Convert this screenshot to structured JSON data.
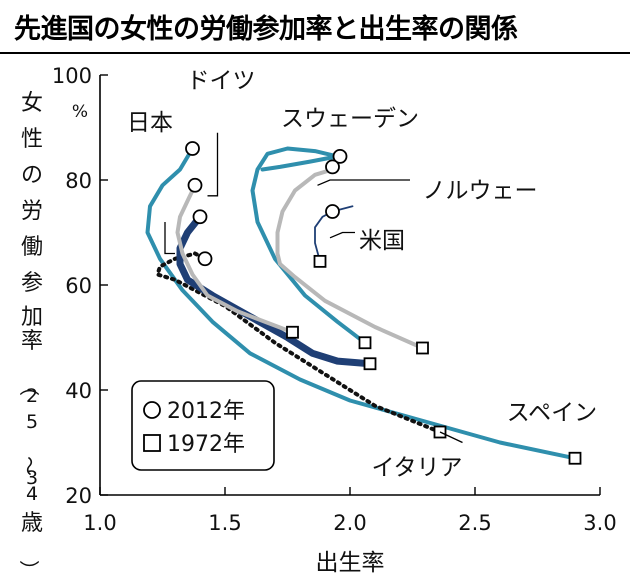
{
  "chart_data": {
    "type": "line",
    "title": "先進国の女性の労働参加率と出生率の関係",
    "xlabel": "出生率",
    "ylabel": "女性の労働参加率（25～34歳）",
    "yunit": "%",
    "xlim": [
      1.0,
      3.0
    ],
    "ylim": [
      20,
      100
    ],
    "xticks": [
      "1.0",
      "1.5",
      "2.0",
      "2.5",
      "3.0"
    ],
    "yticks": [
      "100",
      "80",
      "60",
      "40",
      "20"
    ],
    "legend": {
      "placement": "bottom-left",
      "entries": [
        {
          "symbol": "circle",
          "label": "2012年"
        },
        {
          "symbol": "square",
          "label": "1972年"
        }
      ]
    },
    "series": [
      {
        "name": "スペイン",
        "color": "#2f8fad",
        "style": "solid",
        "points": [
          [
            2.9,
            27
          ],
          [
            2.6,
            30
          ],
          [
            2.3,
            34
          ],
          [
            2.0,
            38
          ],
          [
            1.8,
            42
          ],
          [
            1.6,
            47
          ],
          [
            1.45,
            53
          ],
          [
            1.33,
            59
          ],
          [
            1.24,
            65
          ],
          [
            1.19,
            70
          ],
          [
            1.2,
            75
          ],
          [
            1.25,
            79
          ],
          [
            1.32,
            82
          ],
          [
            1.37,
            86
          ]
        ]
      },
      {
        "name": "イタリア",
        "color": "#111111",
        "style": "dotted",
        "points": [
          [
            2.36,
            32
          ],
          [
            2.1,
            37
          ],
          [
            1.9,
            43
          ],
          [
            1.7,
            49
          ],
          [
            1.5,
            56
          ],
          [
            1.4,
            58.5
          ],
          [
            1.3,
            61
          ],
          [
            1.23,
            62
          ],
          [
            1.24,
            63.5
          ],
          [
            1.3,
            65
          ],
          [
            1.38,
            66
          ],
          [
            1.42,
            65
          ]
        ]
      },
      {
        "name": "日本",
        "color": "#1f3f75",
        "style": "solid",
        "width": 7,
        "points": [
          [
            2.08,
            45
          ],
          [
            1.95,
            45.5
          ],
          [
            1.85,
            47
          ],
          [
            1.75,
            50
          ],
          [
            1.6,
            54
          ],
          [
            1.45,
            58
          ],
          [
            1.35,
            61
          ],
          [
            1.32,
            64
          ],
          [
            1.32,
            67
          ],
          [
            1.35,
            70
          ],
          [
            1.4,
            73
          ]
        ]
      },
      {
        "name": "ドイツ",
        "color": "#b8b8b8",
        "style": "solid",
        "points": [
          [
            1.77,
            51
          ],
          [
            1.55,
            55
          ],
          [
            1.43,
            58
          ],
          [
            1.37,
            62
          ],
          [
            1.33,
            66
          ],
          [
            1.31,
            70
          ],
          [
            1.32,
            73
          ],
          [
            1.35,
            76
          ],
          [
            1.38,
            79
          ]
        ]
      },
      {
        "name": "スウェーデン",
        "color": "#2f8fad",
        "style": "solid",
        "points": [
          [
            2.06,
            49
          ],
          [
            1.95,
            53
          ],
          [
            1.82,
            58
          ],
          [
            1.7,
            65
          ],
          [
            1.63,
            72
          ],
          [
            1.61,
            78
          ],
          [
            1.63,
            82
          ],
          [
            1.67,
            85
          ],
          [
            1.75,
            86
          ],
          [
            1.86,
            85.5
          ],
          [
            1.95,
            84.5
          ],
          [
            1.84,
            83.5
          ],
          [
            1.72,
            82.5
          ],
          [
            1.65,
            82
          ]
        ]
      },
      {
        "name": "ノルウェー",
        "color": "#b8b8b8",
        "style": "solid",
        "points": [
          [
            2.29,
            48
          ],
          [
            2.1,
            52
          ],
          [
            1.9,
            57
          ],
          [
            1.78,
            61.5
          ],
          [
            1.72,
            64
          ],
          [
            1.71,
            66
          ],
          [
            1.71,
            70
          ],
          [
            1.73,
            74
          ],
          [
            1.78,
            78
          ],
          [
            1.86,
            81
          ],
          [
            1.93,
            82
          ]
        ]
      },
      {
        "name": "米国",
        "color": "#1f3f75",
        "style": "solid",
        "width": 1.8,
        "points": [
          [
            1.88,
            64.5
          ],
          [
            1.86,
            68
          ],
          [
            1.86,
            71
          ],
          [
            1.89,
            73
          ],
          [
            1.93,
            74
          ],
          [
            1.97,
            74.5
          ],
          [
            2.01,
            75
          ]
        ]
      }
    ],
    "markers_2012": [
      [
        1.37,
        86
      ],
      [
        1.38,
        79
      ],
      [
        1.4,
        73
      ],
      [
        1.42,
        65
      ],
      [
        1.96,
        84.5
      ],
      [
        1.93,
        82.5
      ],
      [
        1.93,
        74
      ]
    ],
    "markers_1972": [
      [
        1.88,
        64.5
      ],
      [
        1.77,
        51
      ],
      [
        2.06,
        49
      ],
      [
        2.08,
        45
      ],
      [
        2.29,
        48
      ],
      [
        2.36,
        32
      ],
      [
        2.9,
        27
      ]
    ],
    "labels": [
      {
        "text": "日本",
        "points": [
          [
            1.26,
            72
          ],
          [
            1.26,
            66
          ],
          [
            1.3,
            66
          ]
        ]
      },
      {
        "text": "ドイツ",
        "points": [
          [
            1.47,
            89
          ],
          [
            1.47,
            77
          ],
          [
            1.43,
            77
          ]
        ]
      },
      {
        "text": "スウェーデン",
        "points": []
      },
      {
        "text": "ノルウェー",
        "points": [
          [
            2.24,
            80
          ],
          [
            1.92,
            80
          ],
          [
            1.87,
            79
          ]
        ]
      },
      {
        "text": "米国",
        "points": [
          [
            2.02,
            70
          ],
          [
            1.97,
            70
          ],
          [
            1.92,
            69
          ]
        ]
      },
      {
        "text": "スペイン",
        "points": []
      },
      {
        "text": "イタリア",
        "points": [
          [
            2.45,
            30
          ],
          [
            2.36,
            32
          ]
        ]
      }
    ]
  }
}
